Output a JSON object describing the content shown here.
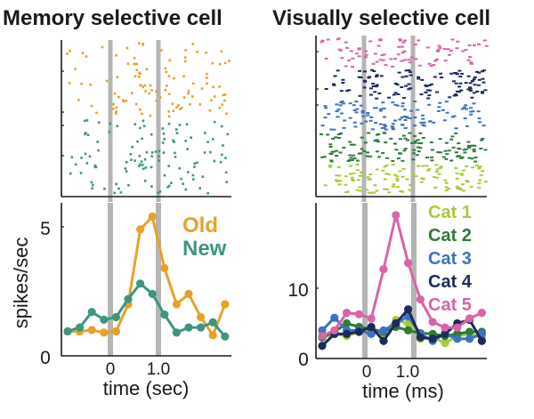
{
  "chart_data": [
    {
      "id": "memory",
      "type": "line",
      "title": "Memory selective cell",
      "xlabel": "time (sec)",
      "ylabel": "spikes/sec",
      "x_tick_labels": [
        "0",
        "1.0"
      ],
      "y_tick_labels": [
        "0",
        "5"
      ],
      "y_ticks": [
        0,
        5
      ],
      "ylim": [
        0,
        6
      ],
      "event_lines": [
        "0",
        "1.0"
      ],
      "x": [
        -0.9,
        -0.65,
        -0.4,
        -0.15,
        0.1,
        0.35,
        0.6,
        0.85,
        1.1,
        1.35,
        1.6,
        1.85,
        2.1,
        2.35
      ],
      "series": [
        {
          "name": "Old",
          "color": "#E8A12A",
          "values": [
            0.95,
            0.95,
            1.0,
            0.9,
            0.95,
            2.0,
            4.9,
            5.4,
            3.4,
            2.0,
            2.4,
            1.5,
            0.8,
            2.0
          ]
        },
        {
          "name": "New",
          "color": "#3E9580",
          "values": [
            0.95,
            1.1,
            1.7,
            1.4,
            1.5,
            2.2,
            2.8,
            2.4,
            1.6,
            0.9,
            1.1,
            1.1,
            1.3,
            0.75
          ]
        }
      ],
      "raster": {
        "groups": [
          {
            "name": "Old",
            "color": "#E8A12A"
          },
          {
            "name": "New",
            "color": "#3E9580"
          }
        ]
      },
      "legend_position": "top-right"
    },
    {
      "id": "visual",
      "type": "line",
      "title": "Visually selective cell",
      "xlabel": "time (ms)",
      "ylabel": "",
      "x_tick_labels": [
        "0",
        "1.0"
      ],
      "y_tick_labels": [
        "0",
        "10"
      ],
      "y_ticks": [
        0,
        10
      ],
      "ylim": [
        0,
        22
      ],
      "event_lines": [
        "0",
        "1.0"
      ],
      "x": [
        -0.9,
        -0.65,
        -0.4,
        -0.15,
        0.1,
        0.35,
        0.6,
        0.85,
        1.1,
        1.35,
        1.6,
        1.85,
        2.1,
        2.35
      ],
      "series": [
        {
          "name": "Cat 1",
          "color": "#A8CB3A",
          "values": [
            3.0,
            3.5,
            3.2,
            3.8,
            4.0,
            3.6,
            5.5,
            5.0,
            2.8,
            3.0,
            2.2,
            3.2,
            3.5,
            3.0
          ]
        },
        {
          "name": "Cat 2",
          "color": "#2E7A3A",
          "values": [
            3.0,
            3.8,
            5.0,
            4.5,
            4.2,
            3.8,
            4.5,
            4.0,
            3.6,
            3.5,
            3.2,
            3.5,
            3.8,
            3.8
          ]
        },
        {
          "name": "Cat 3",
          "color": "#3D72C0",
          "values": [
            4.0,
            5.8,
            4.0,
            4.0,
            3.5,
            4.0,
            5.0,
            6.0,
            3.5,
            2.5,
            3.5,
            2.8,
            2.8,
            3.5
          ]
        },
        {
          "name": "Cat 4",
          "color": "#1C2B5C",
          "values": [
            1.8,
            3.5,
            3.5,
            3.8,
            4.5,
            2.5,
            5.0,
            7.0,
            3.0,
            2.8,
            3.5,
            5.0,
            5.5,
            2.5
          ]
        },
        {
          "name": "Cat 5",
          "color": "#D964A8",
          "values": [
            3.2,
            4.0,
            6.5,
            6.3,
            5.7,
            12.7,
            20.4,
            13.6,
            8.4,
            5.2,
            4.4,
            4.4,
            5.7,
            6.5
          ]
        }
      ],
      "raster": {
        "groups": [
          {
            "name": "Cat 5",
            "color": "#D964A8"
          },
          {
            "name": "Cat 4",
            "color": "#1C2B5C"
          },
          {
            "name": "Cat 3",
            "color": "#3D72C0"
          },
          {
            "name": "Cat 2",
            "color": "#2E7A3A"
          },
          {
            "name": "Cat 1",
            "color": "#A8CB3A"
          }
        ]
      },
      "legend_position": "top-right"
    }
  ],
  "style": {
    "event_line_color": "#B4B4B4",
    "axis_color": "#1a1a1a"
  }
}
